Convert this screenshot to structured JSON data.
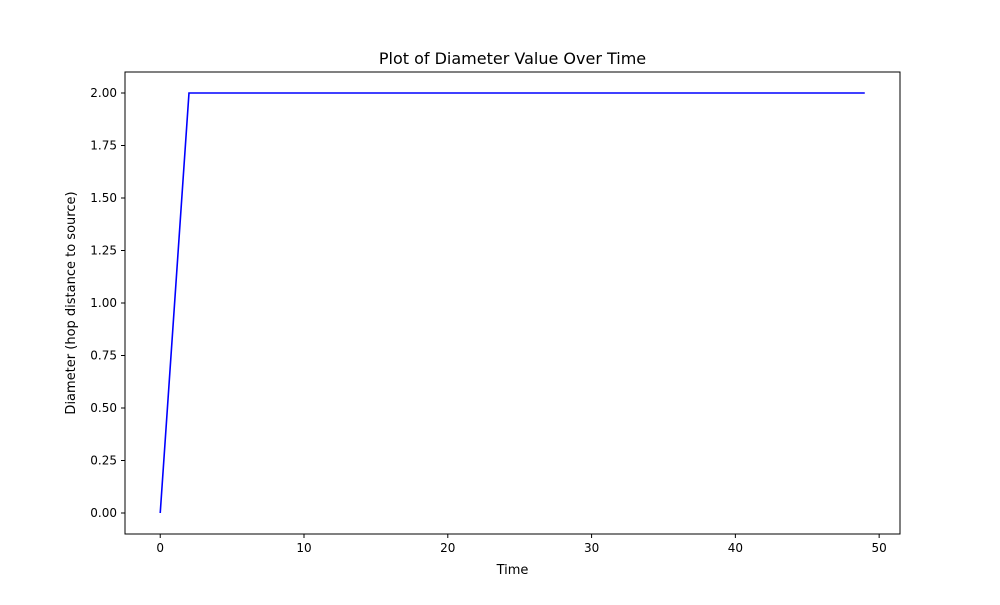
{
  "chart_data": {
    "type": "line",
    "title": "Plot of Diameter Value Over Time",
    "xlabel": "Time",
    "ylabel": "Diameter (hop distance to source)",
    "xlim": [
      -2.45,
      51.45
    ],
    "ylim": [
      -0.1,
      2.1
    ],
    "xticks": [
      0,
      10,
      20,
      30,
      40,
      50
    ],
    "xtick_labels": [
      "0",
      "10",
      "20",
      "30",
      "40",
      "50"
    ],
    "yticks": [
      0,
      0.25,
      0.5,
      0.75,
      1.0,
      1.25,
      1.5,
      1.75,
      2.0
    ],
    "ytick_labels": [
      "0.00",
      "0.25",
      "0.50",
      "0.75",
      "1.00",
      "1.25",
      "1.50",
      "1.75",
      "2.00"
    ],
    "grid": false,
    "legend": "none",
    "series": [
      {
        "color": "#0000ff",
        "x": [
          0,
          2,
          49
        ],
        "y": [
          0,
          2,
          2
        ]
      }
    ]
  }
}
